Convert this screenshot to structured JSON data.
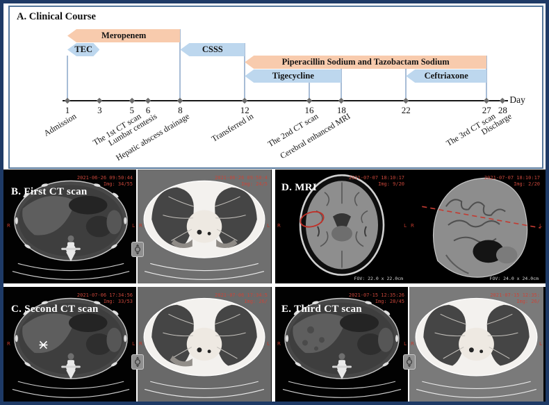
{
  "chart_data": {
    "type": "gantt_timeline",
    "title": "A. Clinical Course",
    "xlabel": "Day",
    "xlim": [
      1,
      28
    ],
    "x_ticks": [
      1,
      3,
      5,
      6,
      8,
      12,
      16,
      18,
      22,
      27,
      28
    ],
    "grid": false,
    "colors": {
      "orange": "#F8CBAD",
      "blue": "#BDD7EE",
      "guide": "#a7bcd6",
      "diamond": "#6b6b6b",
      "panel_border": "#56789c",
      "page_border": "#1e3a66",
      "stamp_red": "#c8463a"
    },
    "bars": [
      {
        "label": "Meropenem",
        "start": 1,
        "end": 8,
        "row": 0,
        "color": "orange"
      },
      {
        "label": "TEC",
        "start": 1,
        "end": 3,
        "row": 1,
        "color": "blue",
        "point_right": true
      },
      {
        "label": "CSSS",
        "start": 8,
        "end": 12,
        "row": 1,
        "color": "blue"
      },
      {
        "label": "Piperacillin Sodium and Tazobactam Sodium",
        "start": 12,
        "end": 27,
        "row": 2,
        "color": "orange"
      },
      {
        "label": "Tigecycline",
        "start": 12,
        "end": 18,
        "row": 3,
        "color": "blue"
      },
      {
        "label": "Ceftriaxone",
        "start": 22,
        "end": 27,
        "row": 3,
        "color": "blue"
      }
    ],
    "events": [
      {
        "label": "Admission",
        "day": 1
      },
      {
        "label": "The 1st CT scan",
        "day": 5
      },
      {
        "label": "Lumbar centesis",
        "day": 6
      },
      {
        "label": "Hepatic abscess drainage",
        "day": 8
      },
      {
        "label": "Transferred in",
        "day": 12
      },
      {
        "label": "The 2nd CT scan",
        "day": 16
      },
      {
        "label": "Cerebral enhanced MRI",
        "day": 18
      },
      {
        "label": "The 3rd CT scan",
        "day": 27
      },
      {
        "label": "Discharge",
        "day": 28
      }
    ],
    "guide_line_days": [
      1,
      8,
      12,
      16,
      18,
      22,
      27
    ]
  },
  "scans": {
    "side_markers": {
      "left": "R",
      "right": "L"
    },
    "b": {
      "label": "B. First CT scan",
      "left": {
        "timestamp": "2021-06-26 09:50:44",
        "img": "Img: 34/55"
      },
      "right": {
        "timestamp": "2021-06-26 09:50:4",
        "img": "Img: 24/5"
      }
    },
    "c": {
      "label": "C. Second CT scan",
      "left": {
        "timestamp": "2021-07-06 17:34:56",
        "img": "Img: 33/53"
      },
      "right": {
        "timestamp": "2021-07-06 17:34:5",
        "img": "Img: 26/"
      }
    },
    "d": {
      "label": "D. MRI",
      "left": {
        "timestamp": "2021-07-07 18:10:17",
        "img": "Img: 9/20",
        "fov": "FOV: 22.0 x 22.0cm",
        "annotation": "red-ellipse"
      },
      "right": {
        "timestamp": "2021-07-07 18:10:17",
        "img": "Img: 2/20",
        "fov": "FOV: 24.0 x 24.0cm",
        "annotation": "red-dashed-line"
      }
    },
    "e": {
      "label": "E. Third CT scan",
      "left": {
        "timestamp": "2021-07-15 12:35:26",
        "img": "Img: 28/45"
      },
      "right": {
        "timestamp": "2021-07-15 12:35:",
        "img": "Img: 26/"
      }
    }
  }
}
